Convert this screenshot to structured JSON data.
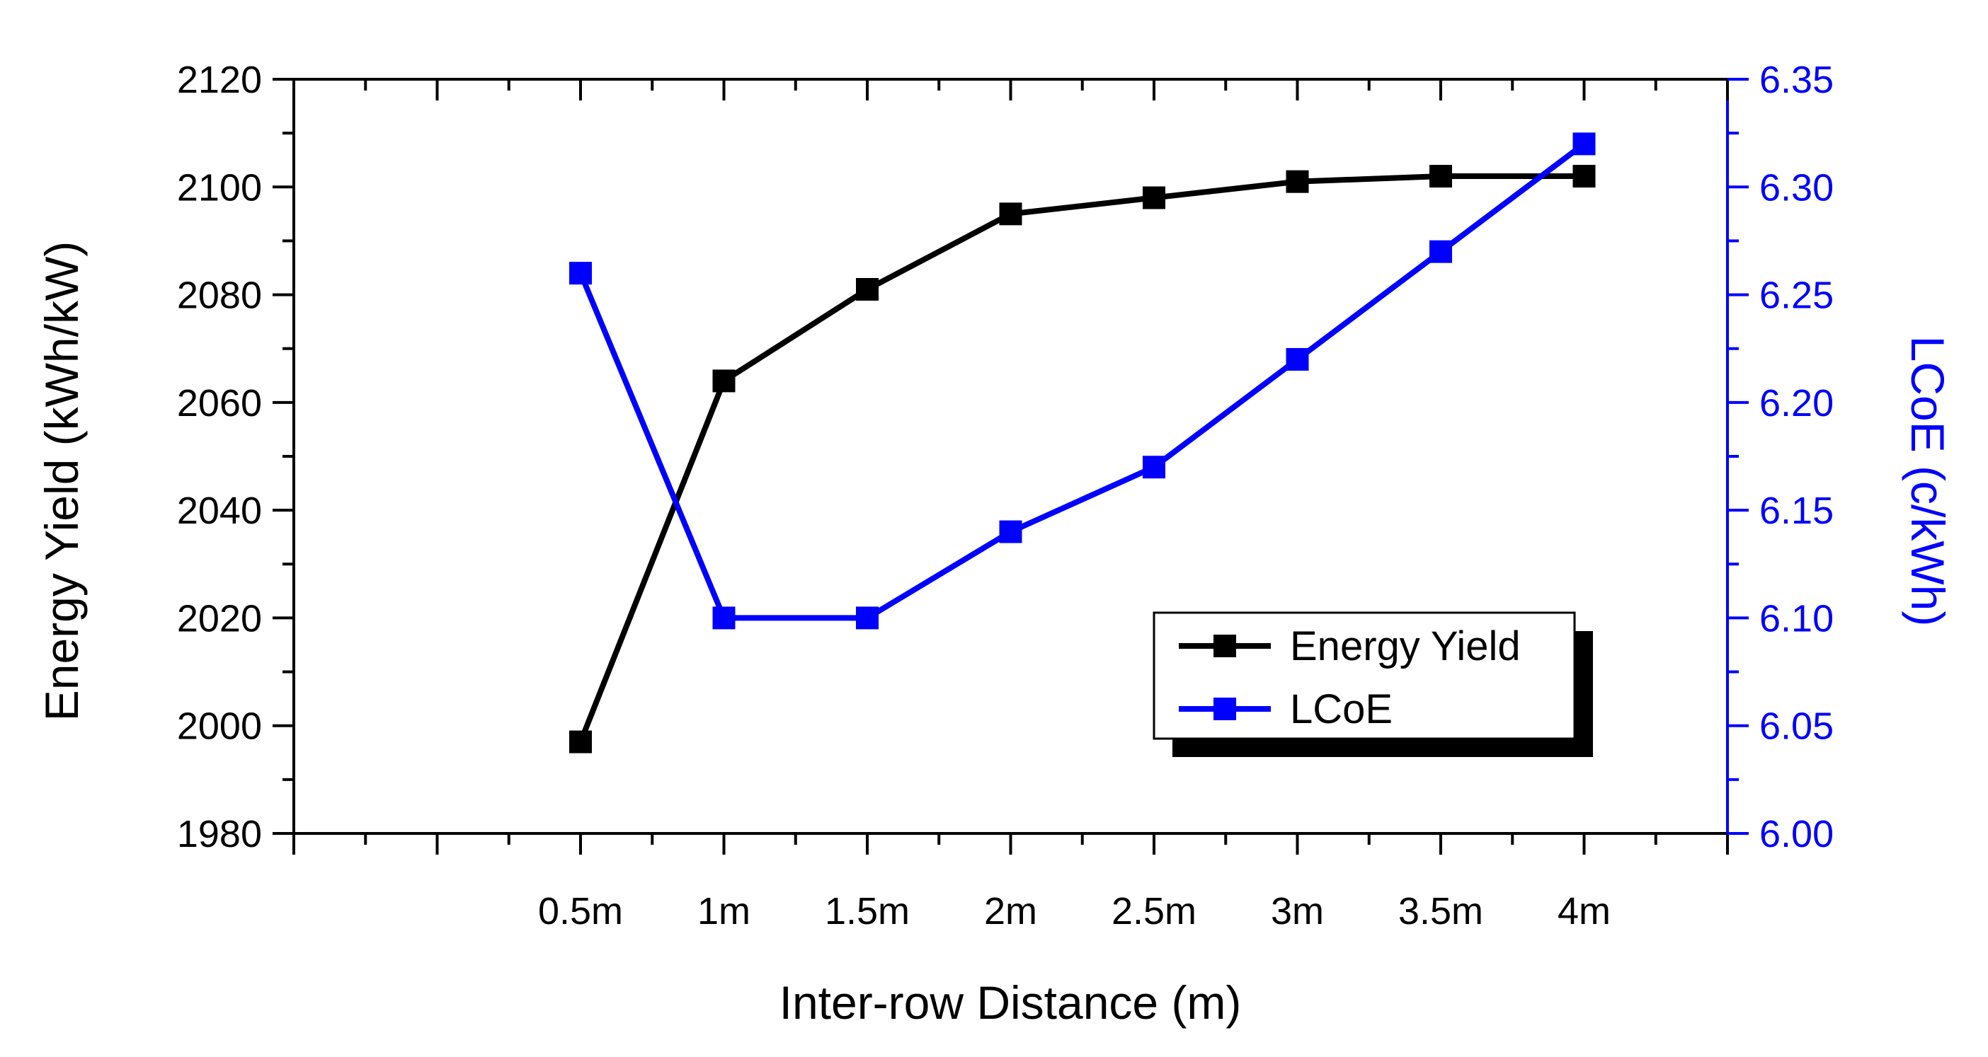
{
  "chart_data": {
    "type": "line",
    "categories": [
      "0.5m",
      "1m",
      "1.5m",
      "2m",
      "2.5m",
      "3m",
      "3.5m",
      "4m"
    ],
    "xlabel": "Inter-row Distance (m)",
    "y_left": {
      "label": "Energy Yield (kWh/kW)",
      "ylim": [
        1980,
        2120
      ],
      "ticks": [
        "1980",
        "2000",
        "2020",
        "2040",
        "2060",
        "2080",
        "2100",
        "2120"
      ],
      "color": "#000000"
    },
    "y_right": {
      "label": "LCoE (c/kWh)",
      "ylim": [
        6.0,
        6.35
      ],
      "ticks": [
        "6.00",
        "6.05",
        "6.10",
        "6.15",
        "6.20",
        "6.25",
        "6.30",
        "6.35"
      ],
      "color": "#0000ff"
    },
    "series": [
      {
        "name": "Energy Yield",
        "axis": "left",
        "color": "#000000",
        "values": [
          1997,
          2064,
          2081,
          2095,
          2098,
          2101,
          2102,
          2102
        ]
      },
      {
        "name": "LCoE",
        "axis": "right",
        "color": "#0000ff",
        "values": [
          6.26,
          6.1,
          6.1,
          6.14,
          6.17,
          6.22,
          6.27,
          6.32
        ]
      }
    ],
    "legend": {
      "position": "bottom-right",
      "entries": [
        "Energy Yield",
        "LCoE"
      ]
    },
    "grid": false
  }
}
